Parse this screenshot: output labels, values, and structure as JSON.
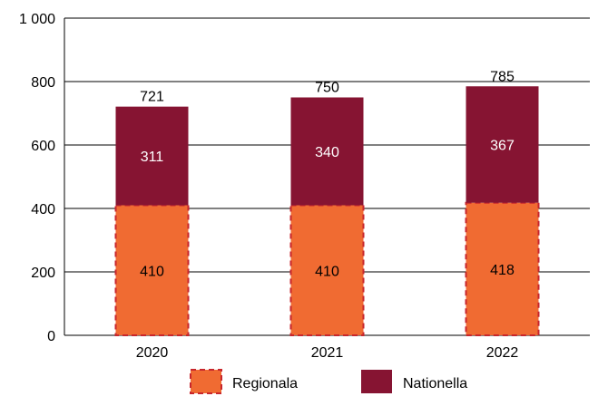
{
  "chart_data": {
    "type": "bar",
    "stacked": true,
    "categories": [
      "2020",
      "2021",
      "2022"
    ],
    "series": [
      {
        "name": "Regionala",
        "values": [
          410,
          410,
          418
        ],
        "color": "#f06b32",
        "border_color": "#c8262c",
        "border_style": "dashed"
      },
      {
        "name": "Nationella",
        "values": [
          311,
          340,
          367
        ],
        "color": "#861432"
      }
    ],
    "totals": [
      721,
      750,
      785
    ],
    "y_tick_labels": [
      "0",
      "200",
      "400",
      "600",
      "800",
      "1 000"
    ],
    "y_ticks": [
      0,
      200,
      400,
      600,
      800,
      1000
    ],
    "ylim": [
      0,
      1000
    ],
    "grid": true,
    "legend_position": "bottom",
    "title": "",
    "xlabel": "",
    "ylabel": ""
  }
}
